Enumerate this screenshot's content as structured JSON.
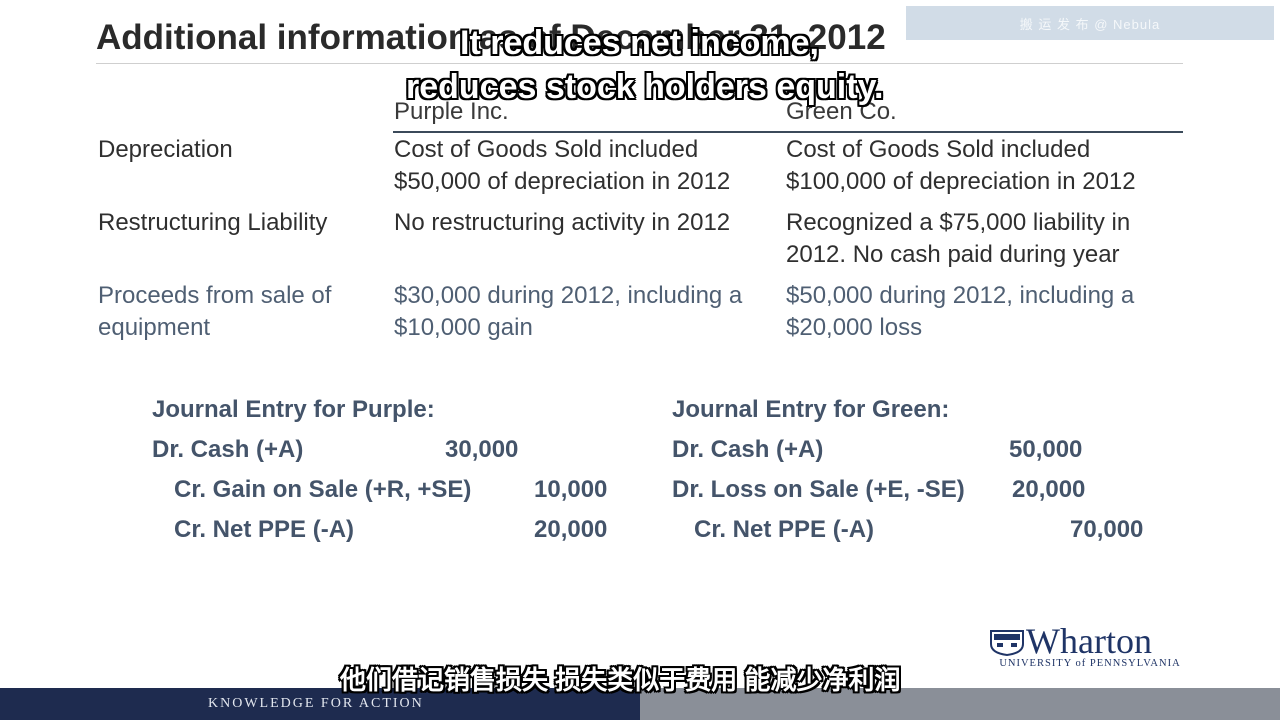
{
  "slide": {
    "title": "Additional information as of December 31, 2012",
    "watermark": "搬 运 发 布 @ Nebula",
    "columns": {
      "purple": "Purple Inc.",
      "green": "Green Co."
    },
    "rows": [
      {
        "label": "Depreciation",
        "purple": [
          "Cost of Goods Sold included",
          "$50,000 of depreciation in 2012"
        ],
        "green": [
          "Cost of Goods Sold included",
          "$100,000 of depreciation in 2012"
        ]
      },
      {
        "label": "Restructuring Liability",
        "purple": [
          "No restructuring activity in 2012"
        ],
        "green": [
          "Recognized a $75,000 liability in",
          "2012.  No cash paid during year"
        ]
      },
      {
        "label": [
          "Proceeds from sale of",
          "equipment"
        ],
        "purple": [
          "$30,000 during 2012, including a",
          "$10,000 gain"
        ],
        "green": [
          "$50,000 during 2012, including a",
          "$20,000 loss"
        ]
      }
    ],
    "journal_purple": {
      "title": "Journal Entry for Purple:",
      "lines": [
        {
          "account": "Dr. Cash (+A)",
          "amount": "30,000"
        },
        {
          "account": "Cr. Gain on Sale (+R, +SE)",
          "amount": "10,000"
        },
        {
          "account": "Cr. Net PPE (-A)",
          "amount": "20,000"
        }
      ]
    },
    "journal_green": {
      "title": "Journal Entry for Green:",
      "lines": [
        {
          "account": "Dr. Cash (+A)",
          "amount": "50,000"
        },
        {
          "account": "Dr. Loss on Sale (+E, -SE)",
          "amount": "20,000"
        },
        {
          "account": "Cr. Net PPE (-A)",
          "amount": "70,000"
        }
      ]
    },
    "logo": {
      "wordmark": "Wharton",
      "subtitle": "UNIVERSITY of PENNSYLVANIA"
    },
    "footer": "KNOWLEDGE FOR ACTION"
  },
  "subtitles": {
    "english_line1": "It reduces net income,",
    "english_line2": "reduces stock holders equity.",
    "chinese": "他们借记销售损失 损失类似于费用 能减少净利润"
  },
  "colors": {
    "footer_bar": "#1e2b4f",
    "journal_text": "#44546a",
    "logo": "#1f3466"
  }
}
